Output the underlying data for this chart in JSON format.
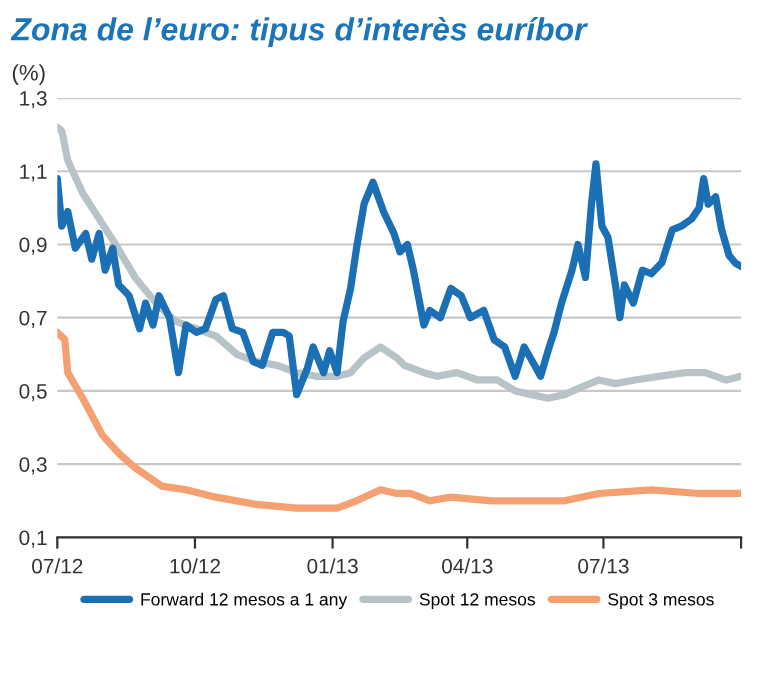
{
  "chart_data": {
    "type": "line",
    "title": "Zona de l’euro: tipus d’interès euríbor",
    "ylabel": "(%)",
    "ylim": [
      0.1,
      1.3
    ],
    "yticks": [
      {
        "value": 0.1,
        "label": "0,1"
      },
      {
        "value": 0.3,
        "label": "0,3"
      },
      {
        "value": 0.5,
        "label": "0,5"
      },
      {
        "value": 0.7,
        "label": "0,7"
      },
      {
        "value": 0.9,
        "label": "0,9"
      },
      {
        "value": 1.1,
        "label": "1,1"
      },
      {
        "value": 1.3,
        "label": "1,3"
      }
    ],
    "xlim": [
      "2012-07-01",
      "2013-10-01"
    ],
    "xticks": [
      {
        "value": "2012-07-01",
        "label": "07/12"
      },
      {
        "value": "2012-10-01",
        "label": "10/12"
      },
      {
        "value": "2013-01-01",
        "label": "01/13"
      },
      {
        "value": "2013-04-01",
        "label": "04/13"
      },
      {
        "value": "2013-07-01",
        "label": "07/13"
      },
      {
        "value": "2013-10-01",
        "label": null
      }
    ],
    "grid": "y",
    "legend": "bottom",
    "marker": "none",
    "line_style": "solid",
    "series": [
      {
        "name": "Forward 12 mesos a 1 any",
        "color": "#1a6fb5",
        "x": [
          "2012-07-01",
          "2012-07-04",
          "2012-07-08",
          "2012-07-13",
          "2012-07-20",
          "2012-07-24",
          "2012-07-29",
          "2012-08-02",
          "2012-08-07",
          "2012-08-11",
          "2012-08-18",
          "2012-08-25",
          "2012-08-29",
          "2012-09-03",
          "2012-09-07",
          "2012-09-14",
          "2012-09-20",
          "2012-09-25",
          "2012-10-02",
          "2012-10-08",
          "2012-10-15",
          "2012-10-20",
          "2012-10-26",
          "2012-11-02",
          "2012-11-09",
          "2012-11-15",
          "2012-11-22",
          "2012-11-29",
          "2012-12-03",
          "2012-12-08",
          "2012-12-15",
          "2012-12-19",
          "2012-12-26",
          "2012-12-30",
          "2013-01-04",
          "2013-01-08",
          "2013-01-13",
          "2013-01-17",
          "2013-01-22",
          "2013-01-28",
          "2013-02-04",
          "2013-02-11",
          "2013-02-15",
          "2013-02-20",
          "2013-02-24",
          "2013-03-03",
          "2013-03-07",
          "2013-03-14",
          "2013-03-21",
          "2013-03-28",
          "2013-04-03",
          "2013-04-12",
          "2013-04-19",
          "2013-04-26",
          "2013-05-03",
          "2013-05-09",
          "2013-05-16",
          "2013-05-20",
          "2013-05-25",
          "2013-05-29",
          "2013-06-03",
          "2013-06-10",
          "2013-06-14",
          "2013-06-19",
          "2013-06-23",
          "2013-06-26",
          "2013-06-30",
          "2013-07-04",
          "2013-07-09",
          "2013-07-12",
          "2013-07-15",
          "2013-07-21",
          "2013-07-27",
          "2013-08-02",
          "2013-08-09",
          "2013-08-16",
          "2013-08-22",
          "2013-08-29",
          "2013-09-03",
          "2013-09-06",
          "2013-09-09",
          "2013-09-14",
          "2013-09-18",
          "2013-09-23",
          "2013-09-27",
          "2013-10-01"
        ],
        "values": [
          1.08,
          0.95,
          0.99,
          0.89,
          0.93,
          0.86,
          0.93,
          0.83,
          0.89,
          0.79,
          0.76,
          0.67,
          0.74,
          0.68,
          0.76,
          0.7,
          0.55,
          0.68,
          0.66,
          0.67,
          0.75,
          0.76,
          0.67,
          0.66,
          0.58,
          0.57,
          0.66,
          0.66,
          0.65,
          0.49,
          0.56,
          0.62,
          0.55,
          0.61,
          0.55,
          0.69,
          0.78,
          0.89,
          1.01,
          1.07,
          0.99,
          0.93,
          0.88,
          0.9,
          0.83,
          0.68,
          0.72,
          0.7,
          0.78,
          0.76,
          0.7,
          0.72,
          0.64,
          0.62,
          0.54,
          0.62,
          0.57,
          0.54,
          0.61,
          0.66,
          0.74,
          0.83,
          0.9,
          0.81,
          1.01,
          1.12,
          0.95,
          0.92,
          0.79,
          0.7,
          0.79,
          0.74,
          0.83,
          0.82,
          0.85,
          0.94,
          0.95,
          0.97,
          1.0,
          1.08,
          1.01,
          1.03,
          0.94,
          0.87,
          0.85,
          0.84
        ]
      },
      {
        "name": "Spot 12 mesos",
        "color": "#b8c3c7",
        "x": [
          "2012-07-01",
          "2012-07-04",
          "2012-07-08",
          "2012-07-18",
          "2012-07-29",
          "2012-08-09",
          "2012-08-22",
          "2012-09-05",
          "2012-09-18",
          "2012-10-02",
          "2012-10-15",
          "2012-10-29",
          "2012-11-11",
          "2012-11-25",
          "2012-12-08",
          "2012-12-21",
          "2013-01-04",
          "2013-01-13",
          "2013-01-22",
          "2013-02-02",
          "2013-02-13",
          "2013-02-18",
          "2013-03-03",
          "2013-03-12",
          "2013-03-25",
          "2013-04-08",
          "2013-04-21",
          "2013-05-03",
          "2013-05-14",
          "2013-05-25",
          "2013-06-05",
          "2013-06-16",
          "2013-06-28",
          "2013-07-09",
          "2013-07-22",
          "2013-08-07",
          "2013-08-25",
          "2013-09-07",
          "2013-09-21",
          "2013-10-01"
        ],
        "values": [
          1.22,
          1.21,
          1.13,
          1.04,
          0.97,
          0.9,
          0.81,
          0.74,
          0.69,
          0.67,
          0.65,
          0.6,
          0.58,
          0.57,
          0.55,
          0.54,
          0.54,
          0.55,
          0.59,
          0.62,
          0.59,
          0.57,
          0.55,
          0.54,
          0.55,
          0.53,
          0.53,
          0.5,
          0.49,
          0.48,
          0.49,
          0.51,
          0.53,
          0.52,
          0.53,
          0.54,
          0.55,
          0.55,
          0.53,
          0.54
        ]
      },
      {
        "name": "Spot 3 mesos",
        "color": "#f4a070",
        "x": [
          "2012-07-01",
          "2012-07-06",
          "2012-07-08",
          "2012-07-18",
          "2012-07-31",
          "2012-08-11",
          "2012-08-22",
          "2012-09-09",
          "2012-09-25",
          "2012-10-15",
          "2012-11-11",
          "2012-12-08",
          "2013-01-04",
          "2013-01-17",
          "2013-02-02",
          "2013-02-13",
          "2013-02-22",
          "2013-03-07",
          "2013-03-21",
          "2013-04-17",
          "2013-05-14",
          "2013-06-05",
          "2013-06-28",
          "2013-08-02",
          "2013-09-03",
          "2013-10-01"
        ],
        "values": [
          0.66,
          0.64,
          0.55,
          0.48,
          0.38,
          0.33,
          0.29,
          0.24,
          0.23,
          0.21,
          0.19,
          0.18,
          0.18,
          0.2,
          0.23,
          0.22,
          0.22,
          0.2,
          0.21,
          0.2,
          0.2,
          0.2,
          0.22,
          0.23,
          0.22,
          0.22
        ]
      }
    ]
  }
}
